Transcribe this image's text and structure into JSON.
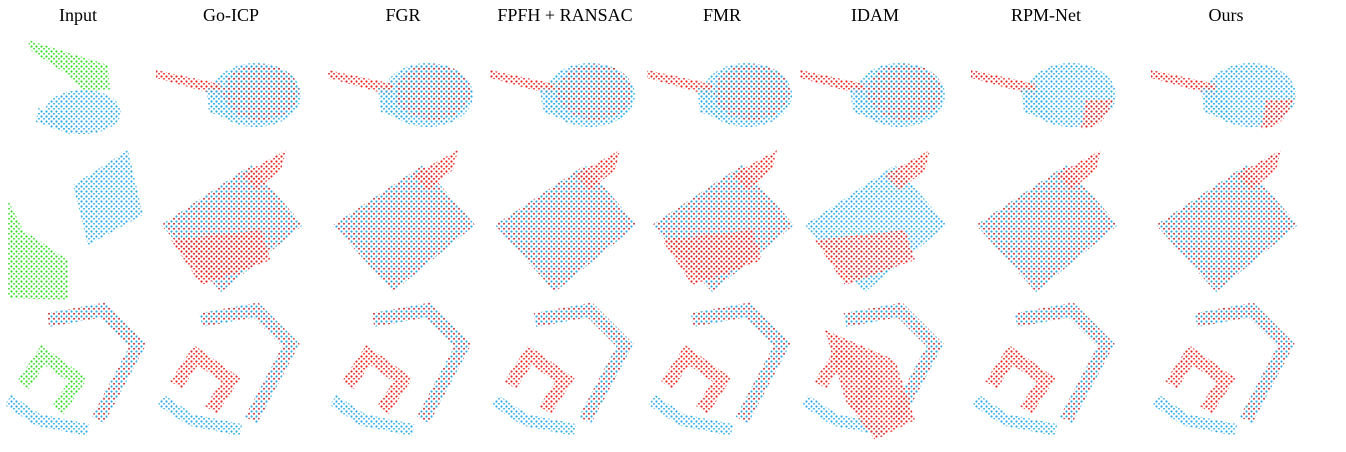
{
  "columns": [
    "Input",
    "Go-ICP",
    "FGR",
    "FPFH + RANSAC",
    "FMR",
    "IDAM",
    "RPM-Net",
    "Ours"
  ]
}
